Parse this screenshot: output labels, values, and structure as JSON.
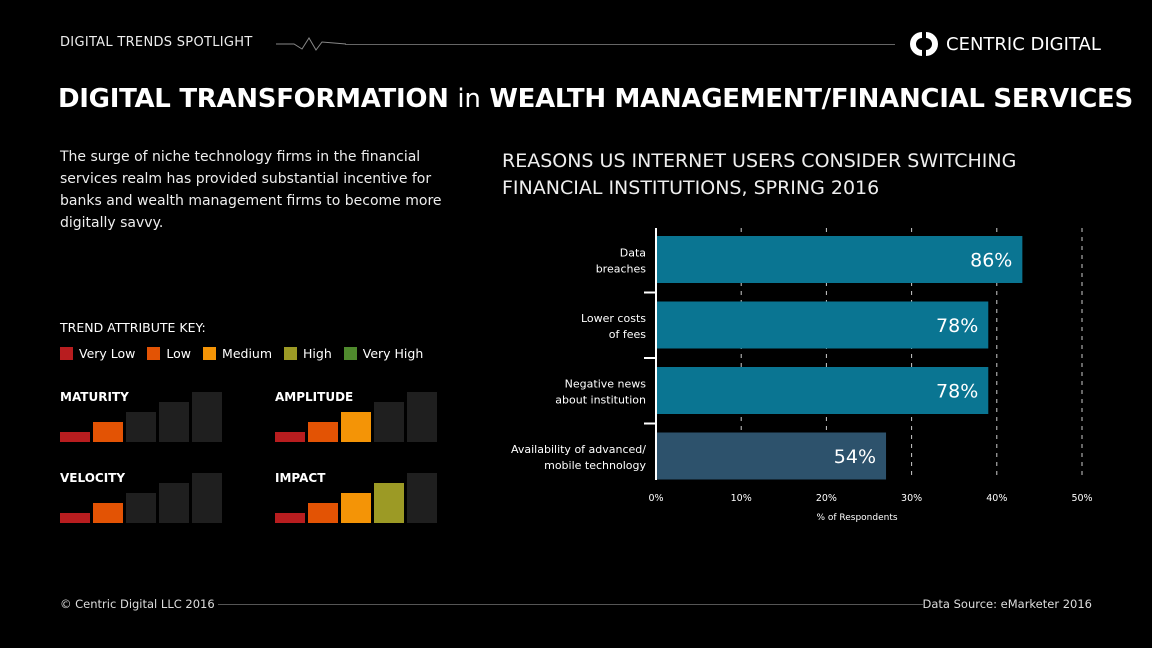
{
  "header": {
    "kicker": "DIGITAL TRENDS SPOTLIGHT",
    "brand": "CENTRIC DIGITAL",
    "title_bold_1": "DIGITAL TRANSFORMATION",
    "title_light": "in",
    "title_bold_2": "WEALTH MANAGEMENT/FINANCIAL SERVICES"
  },
  "intro": "The surge of niche technology firms in the financial services realm has provided substantial incentive for banks and wealth management firms to become more digitally savvy.",
  "key": {
    "title": "TREND ATTRIBUTE KEY:",
    "levels": [
      {
        "label": "Very Low",
        "color": "#b81d1f"
      },
      {
        "label": "Low",
        "color": "#e35304"
      },
      {
        "label": "Medium",
        "color": "#f49406"
      },
      {
        "label": "High",
        "color": "#9c9a25"
      },
      {
        "label": "Very High",
        "color": "#4f8a2d"
      }
    ],
    "attributes": [
      {
        "name": "MATURITY",
        "level": 2
      },
      {
        "name": "AMPLITUDE",
        "level": 3
      },
      {
        "name": "VELOCITY",
        "level": 2
      },
      {
        "name": "IMPACT",
        "level": 4
      }
    ],
    "inactive_color": "#1f1f1f"
  },
  "chart_data": {
    "type": "bar",
    "orientation": "horizontal",
    "title": "REASONS US INTERNET USERS CONSIDER SWITCHING FINANCIAL INSTITUTIONS, SPRING 2016",
    "categories": [
      [
        "Data",
        "breaches"
      ],
      [
        "Lower costs",
        "of fees"
      ],
      [
        "Negative news",
        "about institution"
      ],
      [
        "Availability of advanced/",
        "mobile technology"
      ]
    ],
    "values": [
      86,
      78,
      78,
      54
    ],
    "data_labels": [
      "86%",
      "78%",
      "78%",
      "54%"
    ],
    "colors": [
      "#0a7592",
      "#0a7592",
      "#0a7592",
      "#2d526c"
    ],
    "xticks": [
      "0%",
      "10%",
      "20%",
      "30%",
      "40%",
      "50%"
    ],
    "xlim": [
      0,
      50
    ],
    "xlabel": "% of Respondents",
    "grid": "vertical dashed"
  },
  "footer": {
    "copyright": "© Centric Digital LLC 2016",
    "source": "Data Source: eMarketer 2016"
  }
}
